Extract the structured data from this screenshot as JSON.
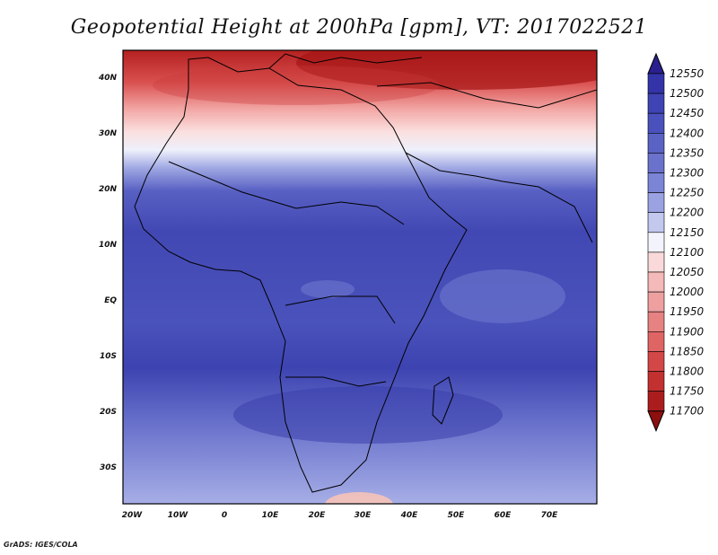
{
  "title": "Geopotential Height at 200hPa [gpm], VT: 2017022521",
  "credit": "GrADS: IGES/COLA",
  "map": {
    "lon_labels": [
      "20W",
      "10W",
      "0",
      "10E",
      "20E",
      "30E",
      "40E",
      "50E",
      "60E",
      "70E"
    ],
    "lat_labels": [
      "40N",
      "30N",
      "20N",
      "10N",
      "EQ",
      "10S",
      "20S",
      "30S"
    ]
  },
  "colorbar": {
    "levels": [
      "12550",
      "12500",
      "12450",
      "12400",
      "12350",
      "12300",
      "12250",
      "12200",
      "12150",
      "12100",
      "12050",
      "12000",
      "11950",
      "11900",
      "11850",
      "11800",
      "11750",
      "11700"
    ],
    "colors": [
      "#2a1f8f",
      "#3434a8",
      "#3f43b4",
      "#4b51bc",
      "#5a62c4",
      "#6a72cc",
      "#7c84d6",
      "#9aa2e2",
      "#c3c8ef",
      "#f3f3fb",
      "#f9d9d9",
      "#f4b9b9",
      "#eea0a0",
      "#e78282",
      "#df6464",
      "#d34747",
      "#c23030",
      "#ab1d1d",
      "#8e0f0f"
    ]
  }
}
